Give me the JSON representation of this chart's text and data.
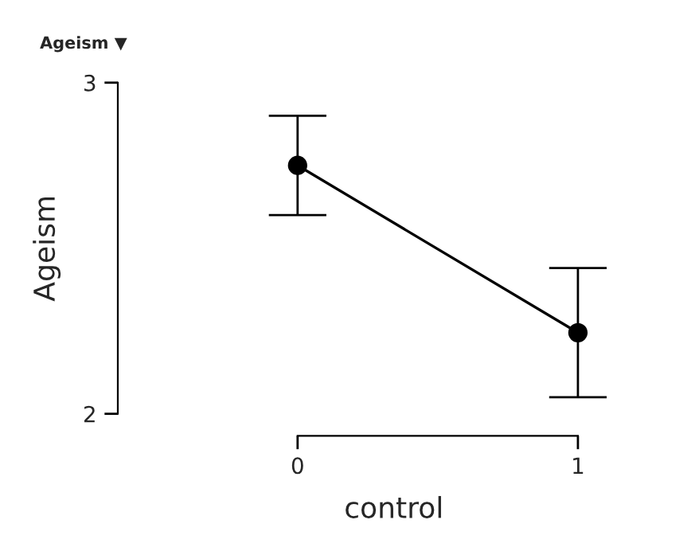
{
  "chart_data": {
    "type": "line",
    "title": "Ageism ▼",
    "xlabel": "control",
    "ylabel": "Ageism",
    "categories": [
      "0",
      "1"
    ],
    "series": [
      {
        "color": "#000000",
        "values": [
          2.75,
          2.245
        ],
        "errors": [
          [
            2.6,
            2.9
          ],
          [
            2.05,
            2.44
          ]
        ]
      }
    ],
    "ylim": [
      2,
      3
    ],
    "yticks": [
      2,
      3
    ],
    "marker": "circle",
    "line_style": "solid",
    "grid": false,
    "legend": false
  }
}
